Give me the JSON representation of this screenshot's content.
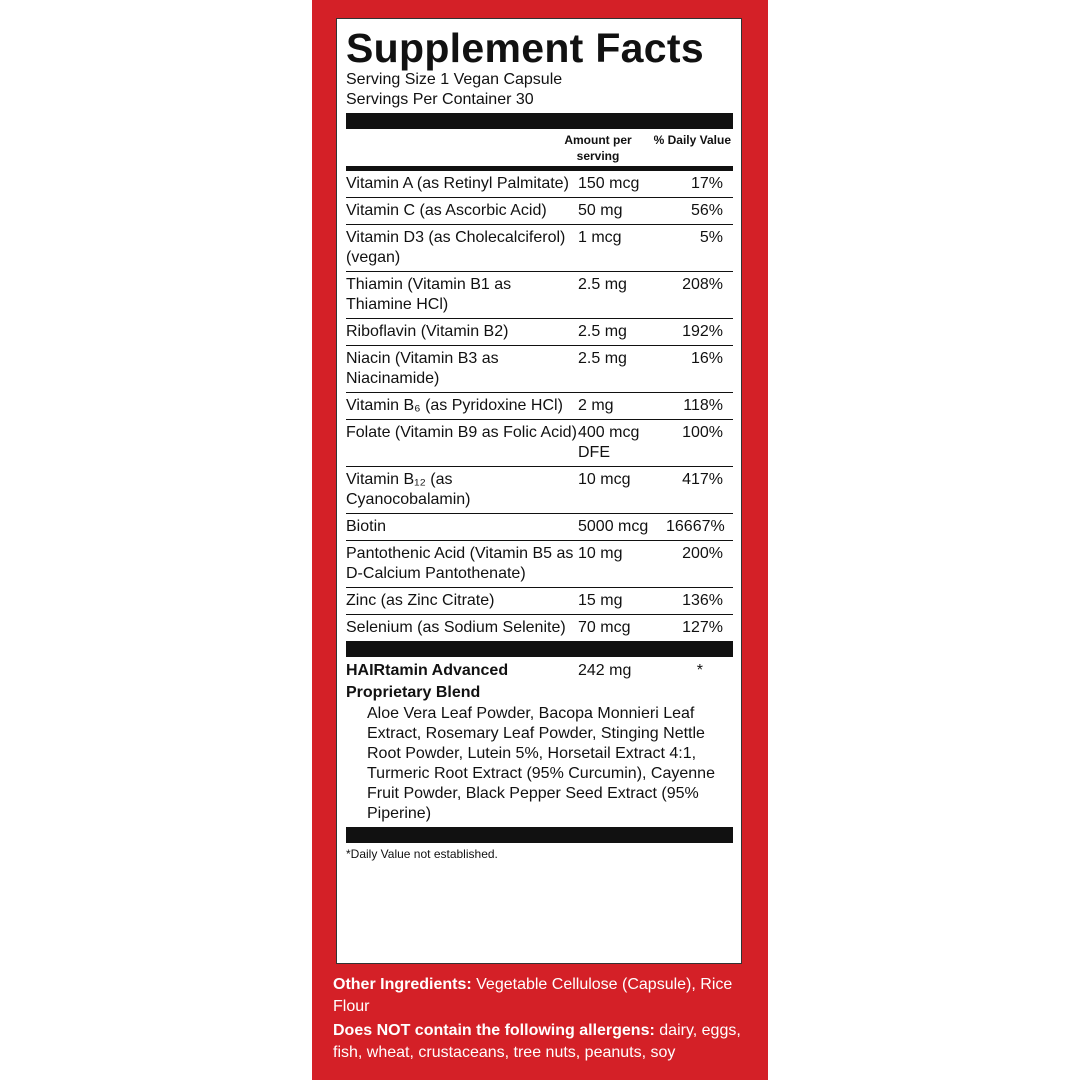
{
  "title": "Supplement Facts",
  "serving_size": "Serving Size 1 Vegan Capsule",
  "servings_per_container": "Servings Per Container 30",
  "table": {
    "header": [
      "Amount per serving",
      "% Daily Value"
    ],
    "rows": [
      [
        "Vitamin A (as Retinyl Palmitate)",
        "150 mcg",
        "17%"
      ],
      [
        "Vitamin C (as Ascorbic Acid)",
        "50 mg",
        "56%"
      ],
      [
        "Vitamin D3 (as Cholecalciferol) (vegan)",
        "1 mcg",
        "5%"
      ],
      [
        "Thiamin (Vitamin B1 as Thiamine HCl)",
        "2.5 mg",
        "208%"
      ],
      [
        "Riboflavin (Vitamin B2)",
        "2.5 mg",
        "192%"
      ],
      [
        "Niacin (Vitamin B3 as Niacinamide)",
        "2.5 mg",
        "16%"
      ],
      [
        "Vitamin B₆ (as Pyridoxine HCl)",
        "2 mg",
        "118%"
      ],
      [
        "Folate (Vitamin B9 as Folic Acid)",
        "400 mcg DFE",
        "100%"
      ],
      [
        "Vitamin B₁₂ (as Cyanocobalamin)",
        "10 mcg",
        "417%"
      ],
      [
        "Biotin",
        "5000 mcg",
        "16667%"
      ],
      [
        "Pantothenic Acid (Vitamin B5 as D-Calcium Pantothenate)",
        "10 mg",
        "200%"
      ],
      [
        "Zinc (as Zinc Citrate)",
        "15 mg",
        "136%"
      ],
      [
        "Selenium (as Sodium Selenite)",
        "70 mcg",
        "127%"
      ]
    ]
  },
  "blend": {
    "name": "HAIRtamin Advanced Proprietary Blend",
    "amount": "242 mg",
    "dv": "*",
    "ingredients": "Aloe Vera Leaf Powder, Bacopa Monnieri Leaf Extract, Rosemary Leaf Powder, Stinging Nettle Root Powder, Lutein 5%, Horsetail Extract 4:1, Turmeric Root Extract (95% Curcumin), Cayenne Fruit Powder, Black Pepper Seed Extract (95% Piperine)"
  },
  "footnote": "*Daily Value not established.",
  "other_ingredients": {
    "label": "Other Ingredients:",
    "text": "Vegetable Cellulose (Capsule), Rice Flour"
  },
  "allergens": {
    "label": "Does NOT contain the following allergens:",
    "text": "dairy, eggs, fish, wheat, crustaceans, tree nuts, peanuts, soy"
  }
}
